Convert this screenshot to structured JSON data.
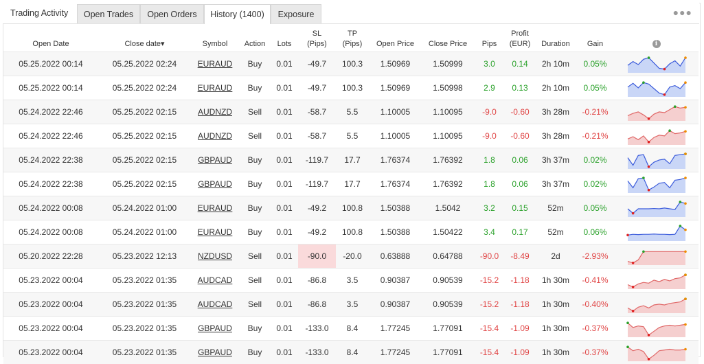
{
  "header": {
    "title": "Trading Activity",
    "tabs": [
      {
        "label": "Open Trades",
        "active": false
      },
      {
        "label": "Open Orders",
        "active": false
      },
      {
        "label": "History (1400)",
        "active": true
      },
      {
        "label": "Exposure",
        "active": false
      }
    ],
    "more_icon": "more-dots-icon"
  },
  "table": {
    "columns": {
      "open_date": "Open Date",
      "close_date": "Close date",
      "sort_indicator": "▾",
      "symbol": "Symbol",
      "action": "Action",
      "lots": "Lots",
      "sl_1": "SL",
      "sl_2": "(Pips)",
      "tp_1": "TP",
      "tp_2": "(Pips)",
      "open_price": "Open Price",
      "close_price": "Close Price",
      "pips": "Pips",
      "profit_1": "Profit",
      "profit_2": "(EUR)",
      "duration": "Duration",
      "gain": "Gain",
      "info_icon": "info-icon"
    },
    "colors": {
      "positive": "#2aa12a",
      "negative": "#e04545",
      "spark_up_fill": "#c9d6f7",
      "spark_up_line": "#3b5bdb",
      "spark_down_fill": "#f5cfcf",
      "spark_down_line": "#e06666"
    },
    "rows": [
      {
        "open_date": "05.25.2022 00:14",
        "close_date": "05.25.2022 02:24",
        "symbol": "EURAUD",
        "action": "Buy",
        "lots": "0.01",
        "sl": "-49.7",
        "tp": "100.3",
        "open_price": "1.50969",
        "close_price": "1.50999",
        "pips": "3.0",
        "profit": "0.14",
        "duration": "2h 10m",
        "gain": "0.05%",
        "positive": true,
        "spark": [
          0.45,
          0.7,
          0.5,
          0.85,
          0.95,
          0.6,
          0.25,
          0.2,
          0.55,
          0.75,
          0.4,
          0.95
        ]
      },
      {
        "open_date": "05.25.2022 00:14",
        "close_date": "05.25.2022 02:24",
        "symbol": "EURAUD",
        "action": "Buy",
        "lots": "0.01",
        "sl": "-49.7",
        "tp": "100.3",
        "open_price": "1.50969",
        "close_price": "1.50998",
        "pips": "2.9",
        "profit": "0.13",
        "duration": "2h 10m",
        "gain": "0.05%",
        "positive": true,
        "spark": [
          0.6,
          0.85,
          0.55,
          0.9,
          0.8,
          0.5,
          0.2,
          0.1,
          0.6,
          0.7,
          0.5,
          0.9
        ]
      },
      {
        "open_date": "05.24.2022 22:46",
        "close_date": "05.25.2022 02:15",
        "symbol": "AUDNZD",
        "action": "Sell",
        "lots": "0.01",
        "sl": "-58.7",
        "tp": "5.5",
        "open_price": "1.10005",
        "close_price": "1.10095",
        "pips": "-9.0",
        "profit": "-0.60",
        "duration": "3h 28m",
        "gain": "-0.21%",
        "positive": false,
        "spark": [
          0.3,
          0.45,
          0.55,
          0.35,
          0.1,
          0.4,
          0.55,
          0.5,
          0.7,
          0.9,
          0.8,
          0.85
        ]
      },
      {
        "open_date": "05.24.2022 22:46",
        "close_date": "05.25.2022 02:15",
        "symbol": "AUDNZD",
        "action": "Sell",
        "lots": "0.01",
        "sl": "-58.7",
        "tp": "5.5",
        "open_price": "1.10005",
        "close_price": "1.10095",
        "pips": "-9.0",
        "profit": "-0.60",
        "duration": "3h 28m",
        "gain": "-0.21%",
        "positive": false,
        "spark": [
          0.35,
          0.5,
          0.3,
          0.55,
          0.15,
          0.45,
          0.6,
          0.55,
          0.9,
          0.7,
          0.75,
          0.85
        ]
      },
      {
        "open_date": "05.24.2022 22:38",
        "close_date": "05.25.2022 02:15",
        "symbol": "GBPAUD",
        "action": "Buy",
        "lots": "0.01",
        "sl": "-119.7",
        "tp": "17.7",
        "open_price": "1.76374",
        "close_price": "1.76392",
        "pips": "1.8",
        "profit": "0.06",
        "duration": "3h 37m",
        "gain": "0.02%",
        "positive": true,
        "spark": [
          0.7,
          0.2,
          0.85,
          0.9,
          0.1,
          0.4,
          0.55,
          0.6,
          0.3,
          0.85,
          0.9,
          0.95
        ]
      },
      {
        "open_date": "05.24.2022 22:38",
        "close_date": "05.25.2022 02:15",
        "symbol": "GBPAUD",
        "action": "Buy",
        "lots": "0.01",
        "sl": "-119.7",
        "tp": "17.7",
        "open_price": "1.76374",
        "close_price": "1.76392",
        "pips": "1.8",
        "profit": "0.06",
        "duration": "3h 37m",
        "gain": "0.02%",
        "positive": true,
        "spark": [
          0.75,
          0.3,
          0.9,
          0.95,
          0.15,
          0.35,
          0.6,
          0.65,
          0.3,
          0.8,
          0.85,
          0.95
        ]
      },
      {
        "open_date": "05.24.2022 00:08",
        "close_date": "05.24.2022 01:00",
        "symbol": "EURAUD",
        "action": "Buy",
        "lots": "0.01",
        "sl": "-49.2",
        "tp": "100.8",
        "open_price": "1.50388",
        "close_price": "1.5042",
        "pips": "3.2",
        "profit": "0.15",
        "duration": "52m",
        "gain": "0.05%",
        "positive": true,
        "spark": [
          0.5,
          0.2,
          0.5,
          0.5,
          0.5,
          0.52,
          0.5,
          0.55,
          0.5,
          0.45,
          0.95,
          0.85
        ]
      },
      {
        "open_date": "05.24.2022 00:08",
        "close_date": "05.24.2022 01:00",
        "symbol": "EURAUD",
        "action": "Buy",
        "lots": "0.01",
        "sl": "-49.2",
        "tp": "100.8",
        "open_price": "1.50388",
        "close_price": "1.50422",
        "pips": "3.4",
        "profit": "0.17",
        "duration": "52m",
        "gain": "0.06%",
        "positive": true,
        "spark": [
          0.35,
          0.4,
          0.38,
          0.4,
          0.4,
          0.42,
          0.4,
          0.4,
          0.38,
          0.4,
          0.95,
          0.7
        ]
      },
      {
        "open_date": "05.20.2022 22:28",
        "close_date": "05.23.2022 12:13",
        "symbol": "NZDUSD",
        "action": "Sell",
        "lots": "0.01",
        "sl": "-90.0",
        "tp": "-20.0",
        "open_price": "0.63888",
        "close_price": "0.64788",
        "pips": "-90.0",
        "profit": "-8.49",
        "duration": "2d",
        "gain": "-2.93%",
        "positive": false,
        "slhit": true,
        "spark": [
          0.2,
          0.1,
          0.3,
          0.85,
          0.85,
          0.85,
          0.85,
          0.85,
          0.85,
          0.85,
          0.85,
          0.85
        ]
      },
      {
        "open_date": "05.23.2022 00:04",
        "close_date": "05.23.2022 01:35",
        "symbol": "AUDCAD",
        "action": "Sell",
        "lots": "0.01",
        "sl": "-86.8",
        "tp": "3.5",
        "open_price": "0.90387",
        "close_price": "0.90539",
        "pips": "-15.2",
        "profit": "-1.18",
        "duration": "1h 30m",
        "gain": "-0.41%",
        "positive": false,
        "spark": [
          0.25,
          0.1,
          0.3,
          0.4,
          0.35,
          0.55,
          0.45,
          0.6,
          0.5,
          0.65,
          0.7,
          0.9
        ]
      },
      {
        "open_date": "05.23.2022 00:04",
        "close_date": "05.23.2022 01:35",
        "symbol": "AUDCAD",
        "action": "Sell",
        "lots": "0.01",
        "sl": "-86.8",
        "tp": "3.5",
        "open_price": "0.90387",
        "close_price": "0.90539",
        "pips": "-15.2",
        "profit": "-1.18",
        "duration": "1h 30m",
        "gain": "-0.40%",
        "positive": false,
        "spark": [
          0.3,
          0.1,
          0.35,
          0.45,
          0.3,
          0.5,
          0.55,
          0.5,
          0.6,
          0.65,
          0.7,
          0.9
        ]
      },
      {
        "open_date": "05.23.2022 00:04",
        "close_date": "05.23.2022 01:35",
        "symbol": "GBPAUD",
        "action": "Buy",
        "lots": "0.01",
        "sl": "-133.0",
        "tp": "8.4",
        "open_price": "1.77245",
        "close_price": "1.77091",
        "pips": "-15.4",
        "profit": "-1.09",
        "duration": "1h 30m",
        "gain": "-0.37%",
        "positive": false,
        "spark": [
          0.9,
          0.6,
          0.7,
          0.65,
          0.1,
          0.35,
          0.6,
          0.7,
          0.75,
          0.7,
          0.75,
          0.8
        ]
      },
      {
        "open_date": "05.23.2022 00:04",
        "close_date": "05.23.2022 01:35",
        "symbol": "GBPAUD",
        "action": "Buy",
        "lots": "0.01",
        "sl": "-133.0",
        "tp": "8.4",
        "open_price": "1.77245",
        "close_price": "1.77091",
        "pips": "-15.4",
        "profit": "-1.09",
        "duration": "1h 30m",
        "gain": "-0.37%",
        "positive": false,
        "spark": [
          0.9,
          0.65,
          0.75,
          0.6,
          0.1,
          0.35,
          0.65,
          0.7,
          0.75,
          0.7,
          0.7,
          0.75
        ]
      }
    ]
  }
}
